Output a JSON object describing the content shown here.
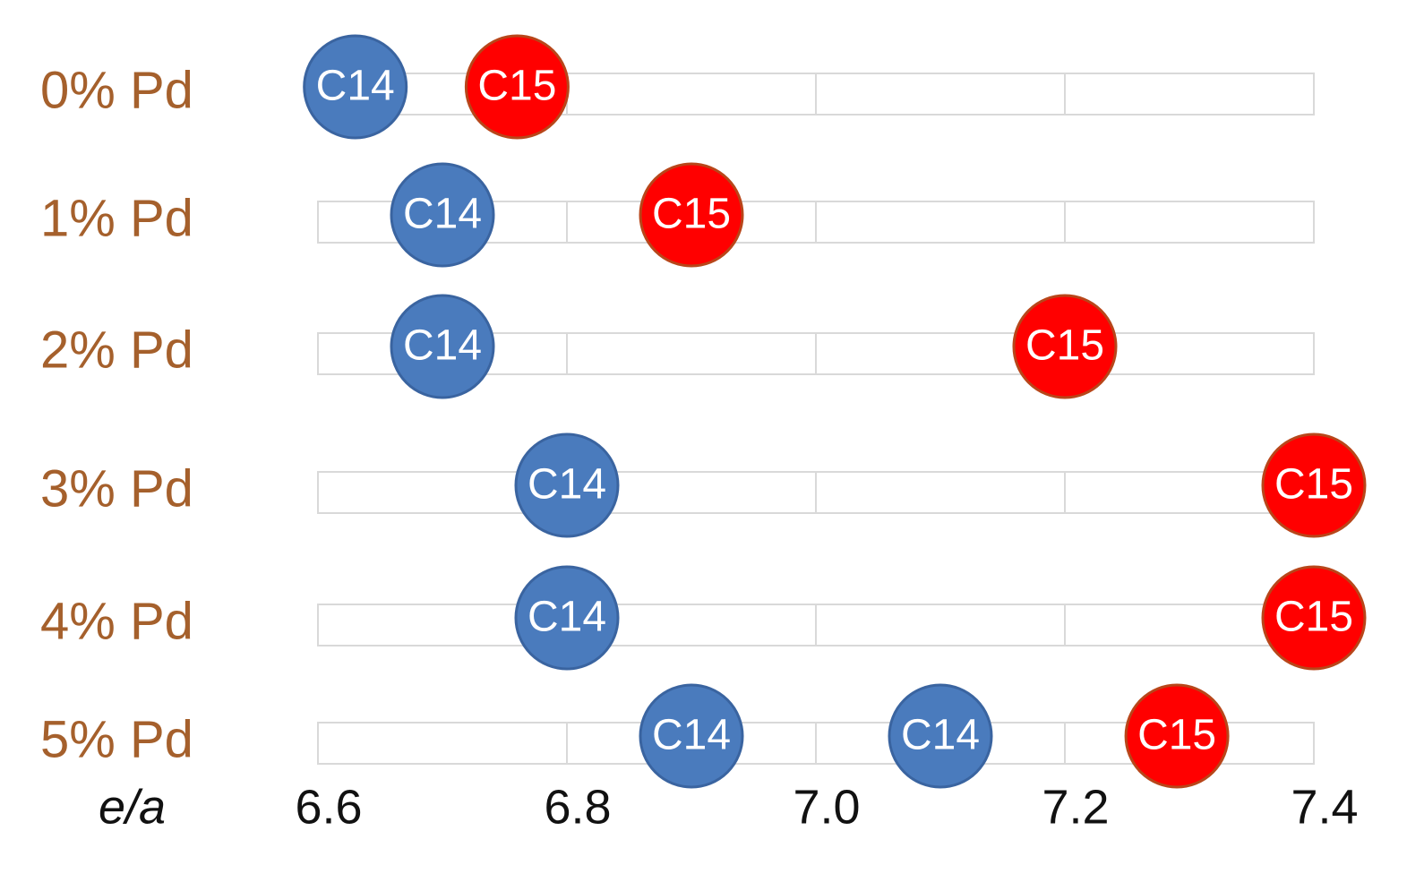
{
  "chart_data": {
    "type": "dot",
    "x_label": "e/a",
    "categories": [
      "0% Pd",
      "1% Pd",
      "2% Pd",
      "3% Pd",
      "4% Pd",
      "5% Pd"
    ],
    "series": [
      {
        "name": "C14",
        "color": "#4a7bbd",
        "values": [
          6.63,
          6.7,
          6.7,
          6.8,
          6.8,
          6.9
        ]
      },
      {
        "name": "C14",
        "color": "#4a7bbd",
        "values": [
          null,
          null,
          null,
          null,
          null,
          7.1
        ]
      },
      {
        "name": "C15",
        "color": "#ff0000",
        "values": [
          6.76,
          6.9,
          7.2,
          7.4,
          7.4,
          7.29
        ]
      }
    ],
    "xlim": [
      6.6,
      7.4
    ],
    "xticks": [
      6.6,
      6.8,
      {
        "value": 7,
        "label": "7.0"
      },
      7.2,
      7.4
    ],
    "grid": true
  }
}
